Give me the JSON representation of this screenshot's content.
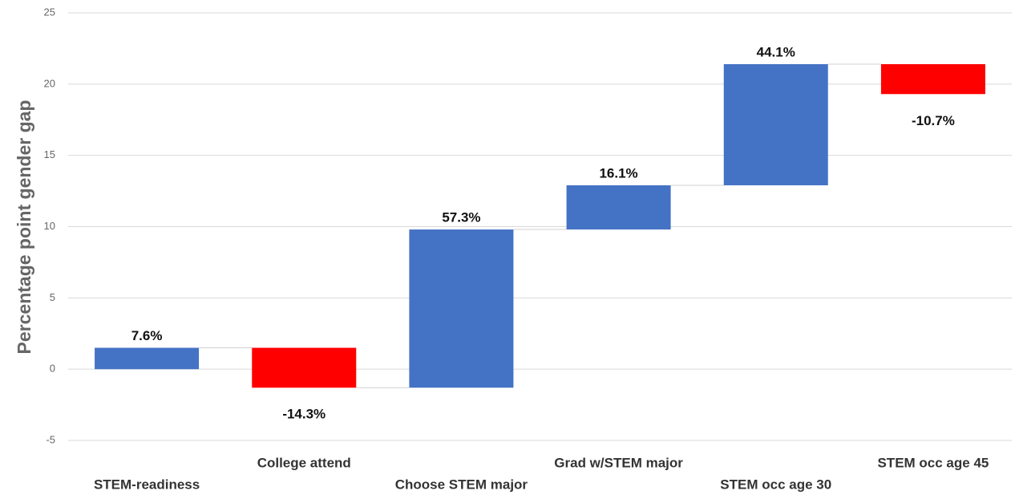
{
  "chart_data": {
    "type": "waterfall",
    "y_axis_label": "Percentage point gender gap",
    "categories": [
      "STEM-readiness",
      "College attend",
      "Choose STEM major",
      "Grad w/STEM major",
      "STEM occ age 30",
      "STEM occ age 45"
    ],
    "values": [
      1.5,
      -2.8,
      11.1,
      3.1,
      8.5,
      -2.1
    ],
    "annotations": [
      "7.6%",
      "-14.3%",
      "57.3%",
      "16.1%",
      "44.1%",
      "-10.7%"
    ],
    "increase_color": "#4472c4",
    "decrease_color": "#ff0000",
    "ylim": [
      -5,
      25
    ],
    "yticks": [
      -5,
      0,
      5,
      10,
      15,
      20,
      25
    ],
    "grid": true
  }
}
